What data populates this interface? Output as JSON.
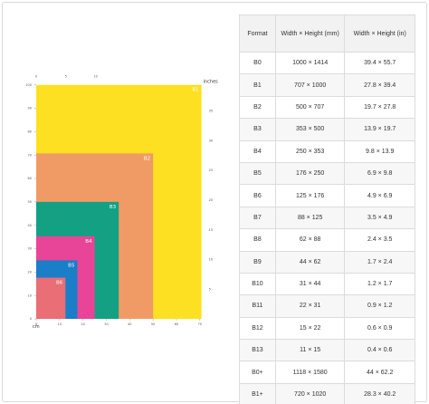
{
  "diagram": {
    "units": {
      "cm": "cm",
      "inches": "inches"
    },
    "rects": [
      {
        "label": "B1",
        "width_mm": 707,
        "height_mm": 1000,
        "color": "#FDE021"
      },
      {
        "label": "B2",
        "width_mm": 500,
        "height_mm": 707,
        "color": "#F09B66"
      },
      {
        "label": "B3",
        "width_mm": 353,
        "height_mm": 500,
        "color": "#13A083"
      },
      {
        "label": "B4",
        "width_mm": 250,
        "height_mm": 353,
        "color": "#E84598"
      },
      {
        "label": "B5",
        "width_mm": 176,
        "height_mm": 250,
        "color": "#1A7EC8"
      },
      {
        "label": "B6",
        "width_mm": 125,
        "height_mm": 176,
        "color": "#E96E75"
      }
    ],
    "x_ticks_cm": [
      "0",
      "10",
      "20",
      "30",
      "40",
      "50",
      "60",
      "70"
    ],
    "y_ticks_cm": [
      "0",
      "10",
      "20",
      "30",
      "40",
      "50",
      "60",
      "70",
      "80",
      "90",
      "100"
    ],
    "x_ticks_in": [
      "0",
      "5",
      "10"
    ],
    "y_ticks_in": [
      "5",
      "10",
      "15",
      "20",
      "25",
      "30",
      "35"
    ]
  },
  "table": {
    "headers": [
      "Format",
      "Width × Height (mm)",
      "Width × Height (in)"
    ],
    "rows": [
      [
        "B0",
        "1000 × 1414",
        "39.4 × 55.7"
      ],
      [
        "B1",
        "707 × 1000",
        "27.8 × 39.4"
      ],
      [
        "B2",
        "500 × 707",
        "19.7 × 27.8"
      ],
      [
        "B3",
        "353 × 500",
        "13.9 × 19.7"
      ],
      [
        "B4",
        "250 × 353",
        "9.8 × 13.9"
      ],
      [
        "B5",
        "176 × 250",
        "6.9 × 9.8"
      ],
      [
        "B6",
        "125 × 176",
        "4.9 × 6.9"
      ],
      [
        "B7",
        "88 × 125",
        "3.5 × 4.9"
      ],
      [
        "B8",
        "62 × 88",
        "2.4 × 3.5"
      ],
      [
        "B9",
        "44 × 62",
        "1.7 × 2.4"
      ],
      [
        "B10",
        "31 × 44",
        "1.2 × 1.7"
      ],
      [
        "B11",
        "22 × 31",
        "0.9 × 1.2"
      ],
      [
        "B12",
        "15 × 22",
        "0.6 × 0.9"
      ],
      [
        "B13",
        "11 × 15",
        "0.4 × 0.6"
      ],
      [
        "B0+",
        "1118 × 1580",
        "44 × 62.2"
      ],
      [
        "B1+",
        "720 × 1020",
        "28.3 × 40.2"
      ]
    ]
  }
}
